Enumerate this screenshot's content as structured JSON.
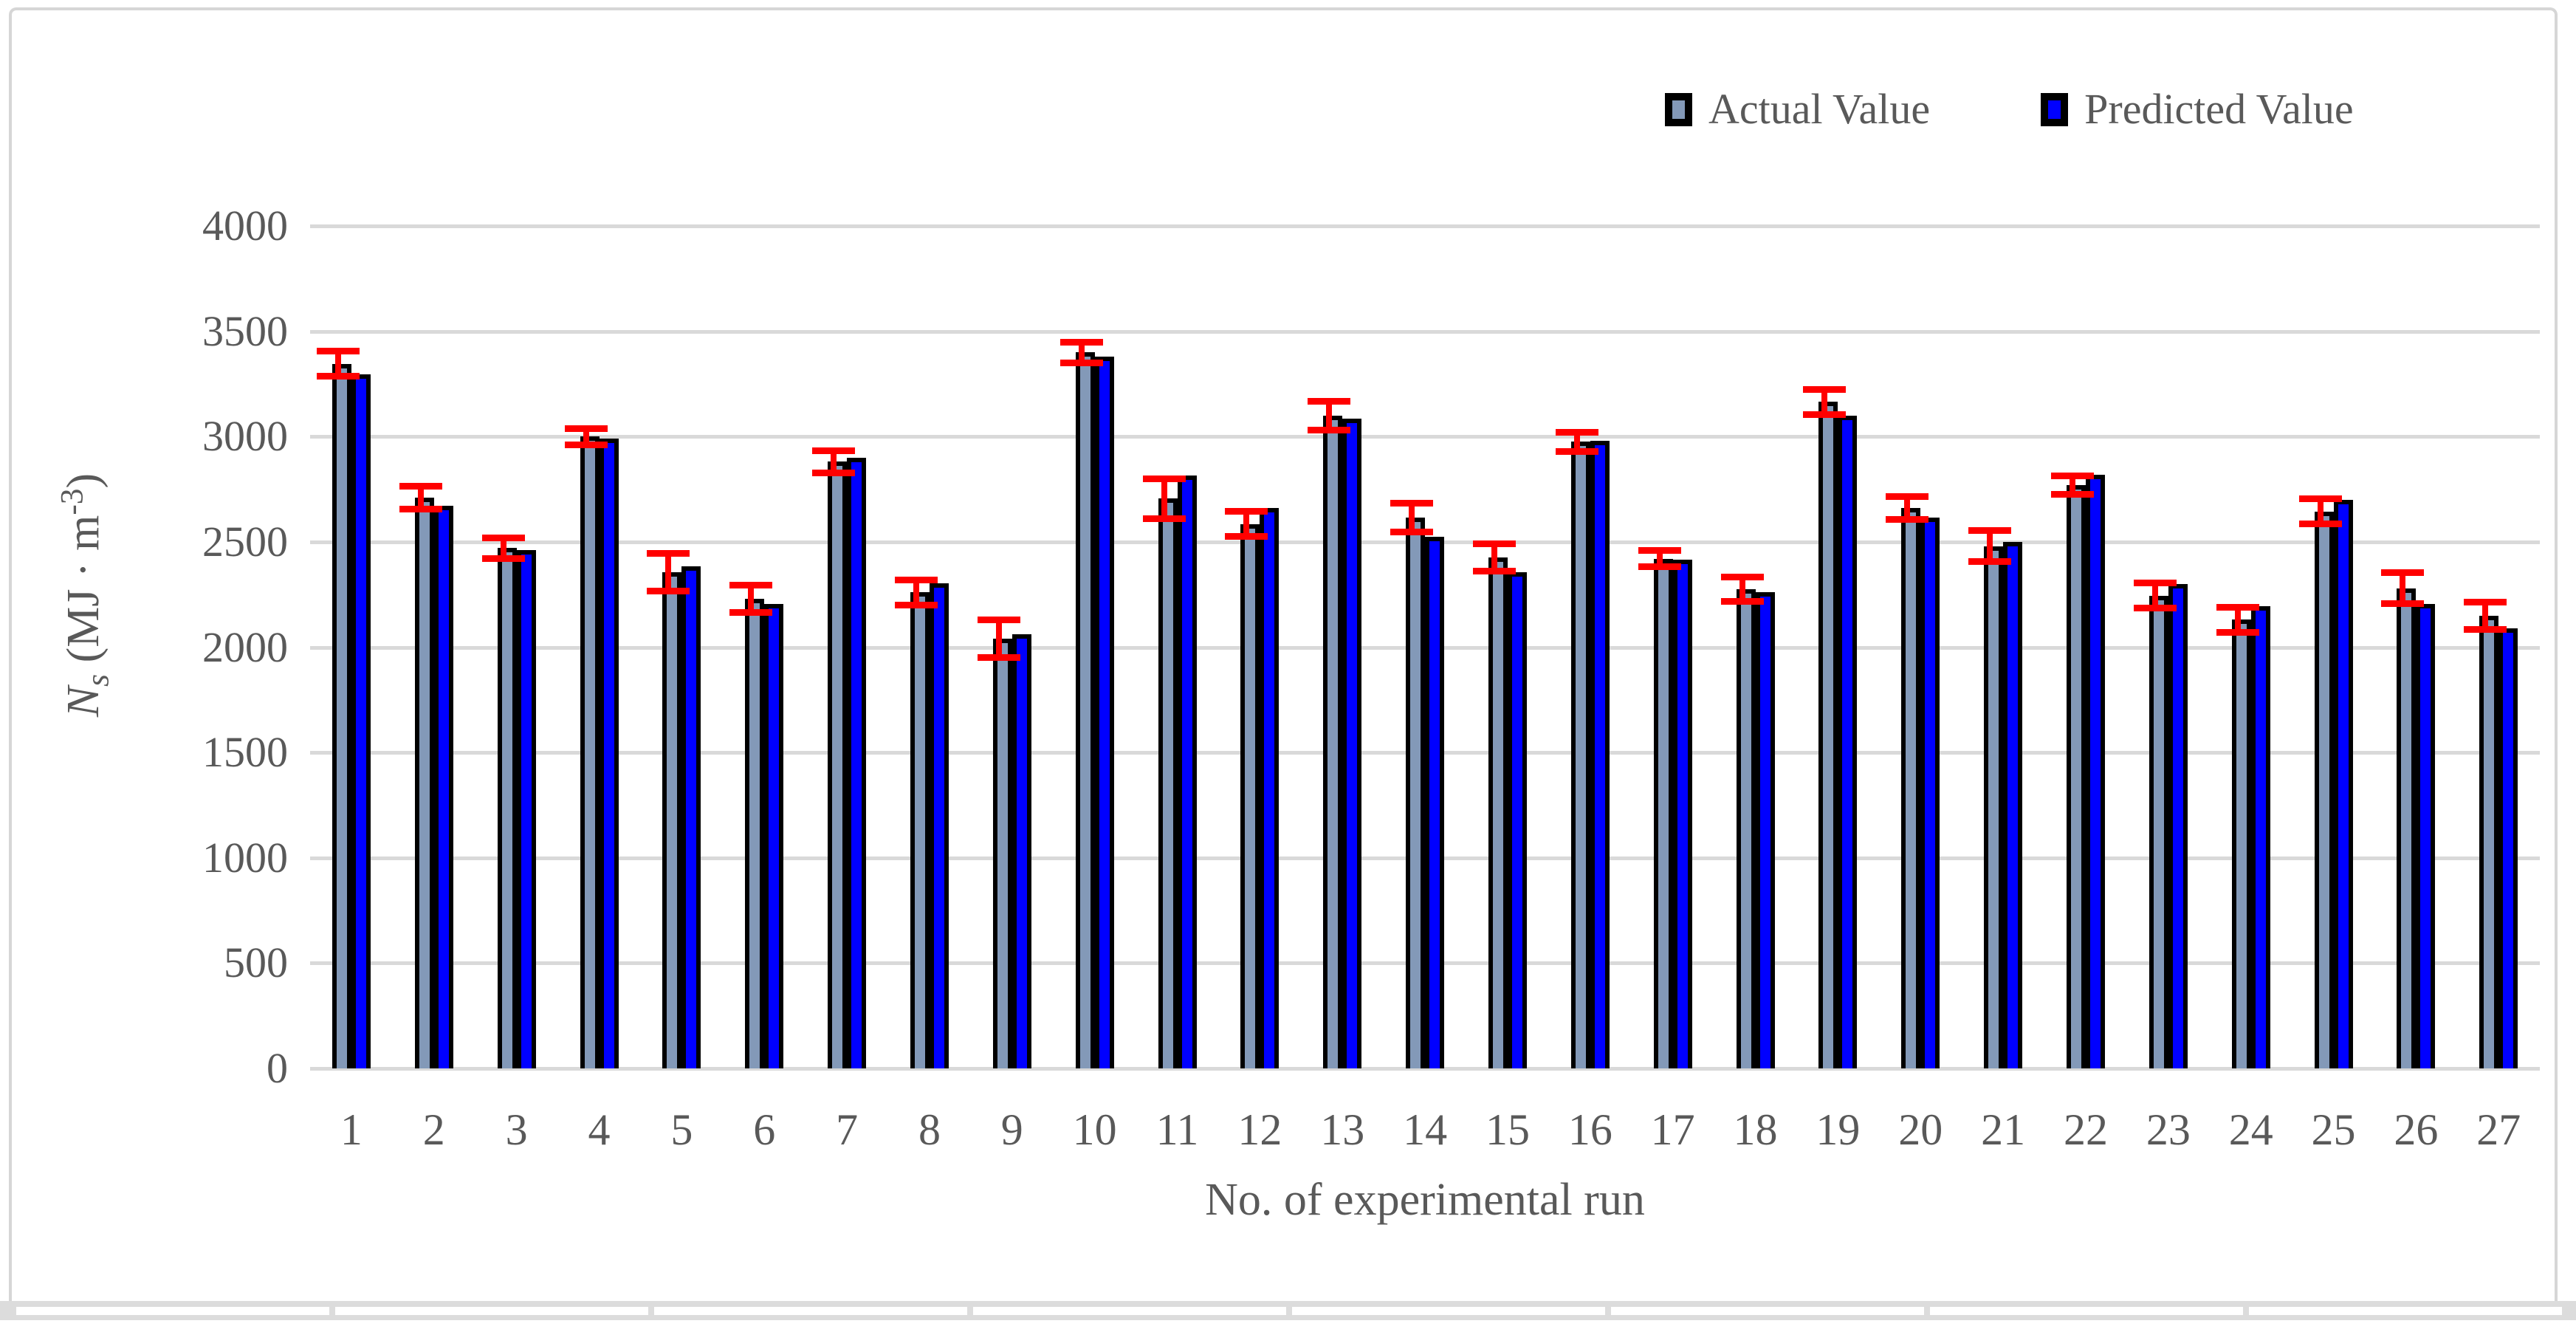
{
  "chart_data": {
    "type": "bar",
    "title": "",
    "xlabel": "No. of experimental run",
    "ylabel": "Ns (MJ · m-3)",
    "ylabel_parts": {
      "var": "N",
      "var_sub": "s",
      "unit_pre": " (MJ · m",
      "unit_sup": "-3",
      "unit_post": ")"
    },
    "categories": [
      "1",
      "2",
      "3",
      "4",
      "5",
      "6",
      "7",
      "8",
      "9",
      "10",
      "11",
      "12",
      "13",
      "14",
      "15",
      "16",
      "17",
      "18",
      "19",
      "20",
      "21",
      "22",
      "23",
      "24",
      "25",
      "26",
      "27"
    ],
    "series": [
      {
        "name": "Actual Value",
        "color": "#8399B8",
        "values": [
          3345,
          2710,
          2470,
          3000,
          2355,
          2230,
          2880,
          2260,
          2040,
          3400,
          2705,
          2585,
          3100,
          2615,
          2425,
          2975,
          2420,
          2275,
          3165,
          2660,
          2480,
          2770,
          2245,
          2130,
          2645,
          2280,
          2150
        ]
      },
      {
        "name": "Predicted Value",
        "color": "#0000FF",
        "values": [
          3295,
          2670,
          2460,
          2990,
          2385,
          2205,
          2900,
          2305,
          2060,
          3380,
          2815,
          2660,
          3085,
          2525,
          2355,
          2980,
          2415,
          2260,
          3100,
          2615,
          2500,
          2820,
          2300,
          2195,
          2700,
          2205,
          2090
        ]
      }
    ],
    "error_bars": {
      "applies_to": "Actual Value",
      "color": "#FF0000",
      "plus_minus": [
        75,
        70,
        65,
        55,
        105,
        80,
        70,
        75,
        105,
        65,
        110,
        75,
        85,
        85,
        80,
        60,
        55,
        75,
        75,
        70,
        90,
        60,
        75,
        75,
        75,
        90,
        80
      ]
    },
    "ylim": [
      0,
      4000
    ],
    "yticks": [
      0,
      500,
      1000,
      1500,
      2000,
      2500,
      3000,
      3500,
      4000
    ],
    "grid": "horizontal",
    "legend_position": "top-right"
  },
  "colors": {
    "actual_fill": "#8399B8",
    "predicted_fill": "#0000FF",
    "bar_border": "#000000",
    "error_bar": "#FF0000",
    "gridline": "#D9D9D9",
    "text": "#595959",
    "frame_border": "#D6D6D6",
    "table_strip_bg": "#DCDCDC"
  }
}
